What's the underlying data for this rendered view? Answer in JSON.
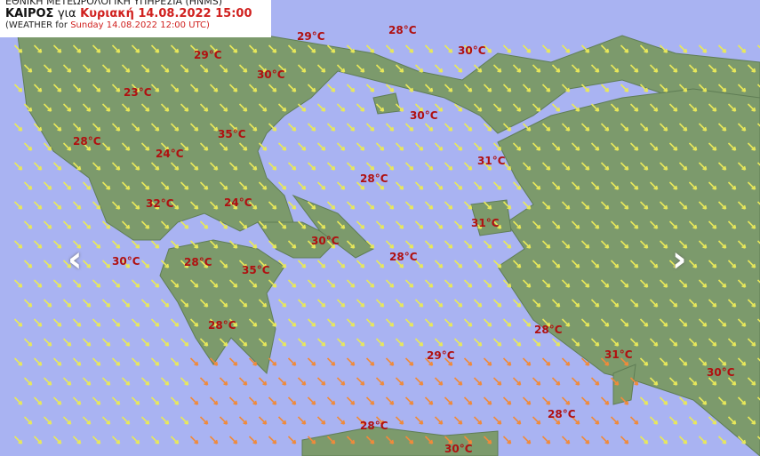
{
  "header": {
    "agency": "ΕΘΝΙΚΗ ΜΕΤΕΩΡΟΛΟΓΙΚΗ ΥΠΗΡΕΣΙΑ (HNMS)",
    "weather_label": "ΚΑΙΡΟΣ",
    "for_label": "για",
    "local_datetime": "Κυριακή 14.08.2022 15:00",
    "utc_prefix": "(WEATHER for",
    "utc_datetime": "Sunday 14.08.2022 12:00 UTC)"
  },
  "temperatures": [
    "29°C",
    "29°C",
    "28°C",
    "30°C",
    "30°C",
    "23°C",
    "30°C",
    "28°C",
    "35°C",
    "24°C",
    "31°C",
    "28°C",
    "32°C",
    "24°C",
    "31°C",
    "30°C",
    "28°C",
    "30°C",
    "28°C",
    "35°C",
    "28°C",
    "28°C",
    "29°C",
    "31°C",
    "30°C",
    "28°C",
    "28°C",
    "30°C"
  ],
  "navigation": {
    "prev_icon": "chevron-left-icon",
    "next_icon": "chevron-right-icon",
    "prev": "‹",
    "next": "›"
  },
  "colors": {
    "sea": "#a9b3f2",
    "land": "#7c9a6c",
    "temperature": "#b01010",
    "wind_arrow": "#e8e85a",
    "wind_arrow_strong": "#f08a3a"
  }
}
